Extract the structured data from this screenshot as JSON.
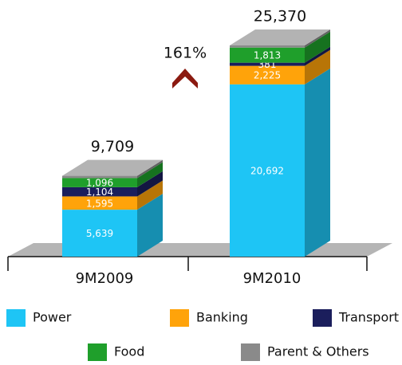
{
  "chart_data": {
    "type": "bar3d-stacked",
    "categories": [
      "9M2009",
      "9M2010"
    ],
    "series": [
      {
        "name": "Power",
        "color": "#1ec5f5",
        "values": [
          5639,
          20692
        ],
        "value_labels": [
          "5,639",
          "20,692"
        ]
      },
      {
        "name": "Banking",
        "color": "#ffa30a",
        "values": [
          1595,
          2225
        ],
        "value_labels": [
          "1,595",
          "2,225"
        ]
      },
      {
        "name": "Transport",
        "color": "#1b1e5c",
        "values": [
          1104,
          381
        ],
        "value_labels": [
          "1,104",
          "381"
        ]
      },
      {
        "name": "Food",
        "color": "#1f9f2b",
        "values": [
          1096,
          1813
        ],
        "value_labels": [
          "1,096",
          "1,813"
        ]
      },
      {
        "name": "Parent & Others",
        "color": "#8a8a8a",
        "values": [
          275,
          259
        ]
      }
    ],
    "totals": [
      9709,
      25370
    ],
    "total_labels": [
      "9,709",
      "25,370"
    ],
    "annotation": "161%"
  }
}
